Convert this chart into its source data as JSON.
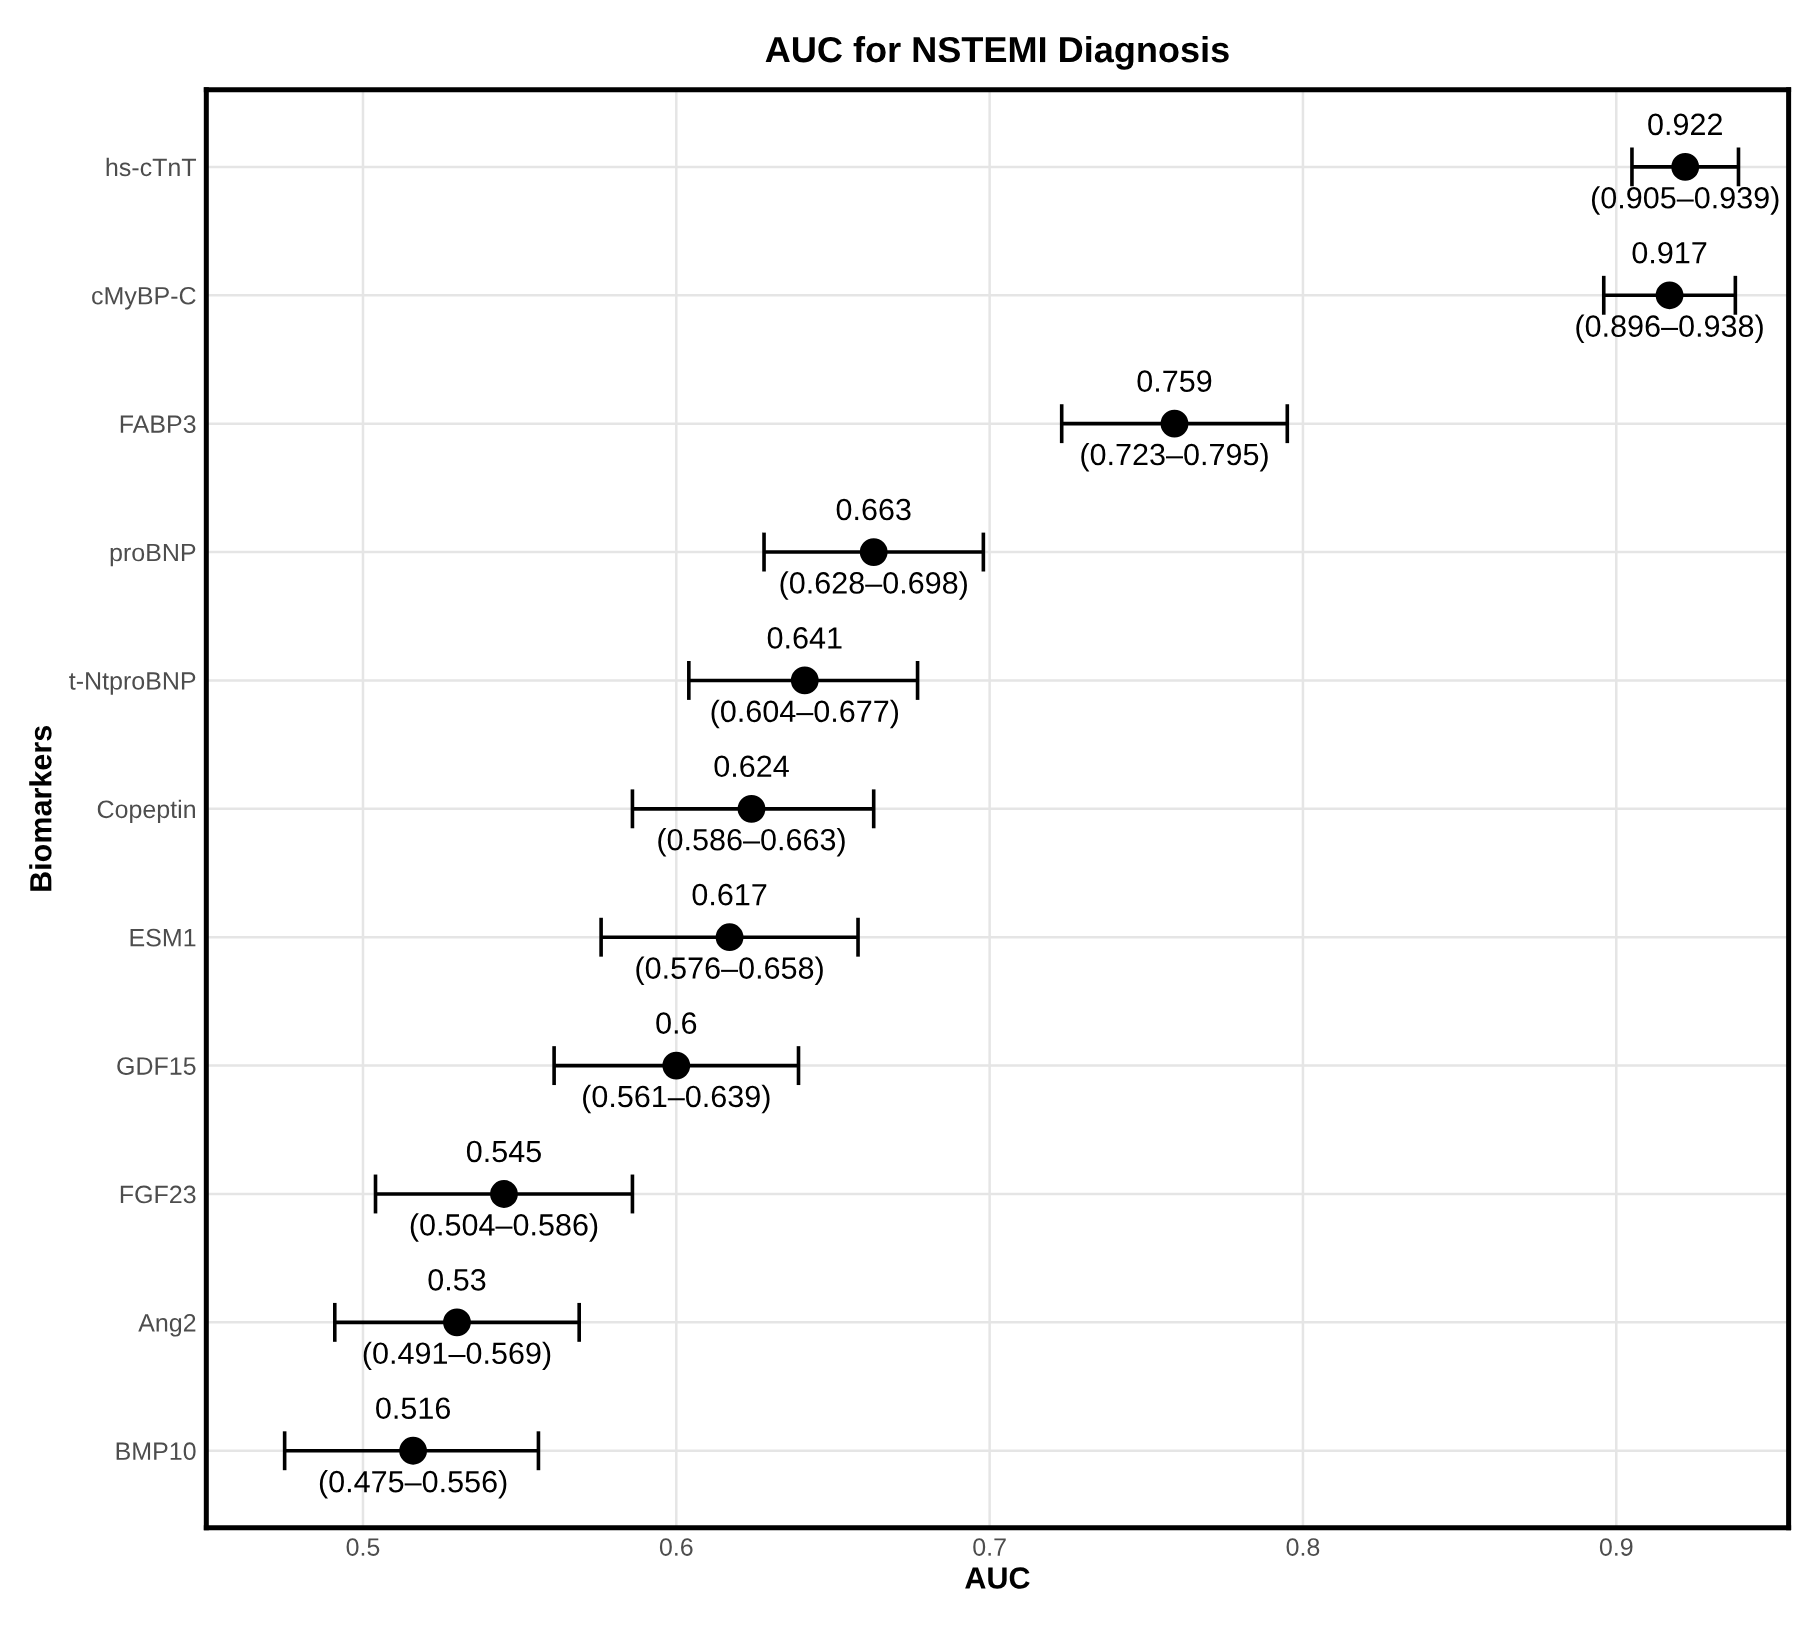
{
  "chart_data": {
    "type": "scatter",
    "orientation": "horizontal",
    "title": "AUC for NSTEMI Diagnosis",
    "xlabel": "AUC",
    "ylabel": "Biomarkers",
    "categories": [
      "hs-cTnT",
      "cMyBP-C",
      "FABP3",
      "proBNP",
      "t-NtproBNP",
      "Copeptin",
      "ESM1",
      "GDF15",
      "FGF23",
      "Ang2",
      "BMP10"
    ],
    "values": [
      0.922,
      0.917,
      0.759,
      0.663,
      0.641,
      0.624,
      0.617,
      0.6,
      0.545,
      0.53,
      0.516
    ],
    "errors": [
      [
        0.905,
        0.939
      ],
      [
        0.896,
        0.938
      ],
      [
        0.723,
        0.795
      ],
      [
        0.628,
        0.698
      ],
      [
        0.604,
        0.677
      ],
      [
        0.586,
        0.663
      ],
      [
        0.576,
        0.658
      ],
      [
        0.561,
        0.639
      ],
      [
        0.504,
        0.586
      ],
      [
        0.491,
        0.569
      ],
      [
        0.475,
        0.556
      ]
    ],
    "value_labels": [
      "0.922",
      "0.917",
      "0.759",
      "0.663",
      "0.641",
      "0.624",
      "0.617",
      "0.6",
      "0.545",
      "0.53",
      "0.516"
    ],
    "annotations": [
      {
        "text": "(0.905–0.939)",
        "x": 0.922,
        "y": "hs-cTnT"
      },
      {
        "text": "(0.896–0.938)",
        "x": 0.917,
        "y": "cMyBP-C"
      },
      {
        "text": "(0.723–0.795)",
        "x": 0.759,
        "y": "FABP3"
      },
      {
        "text": "(0.628–0.698)",
        "x": 0.663,
        "y": "proBNP"
      },
      {
        "text": "(0.604–0.677)",
        "x": 0.641,
        "y": "t-NtproBNP"
      },
      {
        "text": "(0.586–0.663)",
        "x": 0.624,
        "y": "Copeptin"
      },
      {
        "text": "(0.576–0.658)",
        "x": 0.617,
        "y": "ESM1"
      },
      {
        "text": "(0.561–0.639)",
        "x": 0.6,
        "y": "GDF15"
      },
      {
        "text": "(0.504–0.586)",
        "x": 0.545,
        "y": "FGF23"
      },
      {
        "text": "(0.491–0.569)",
        "x": 0.53,
        "y": "Ang2"
      },
      {
        "text": "(0.475–0.556)",
        "x": 0.516,
        "y": "BMP10"
      }
    ],
    "color": "#000000",
    "marker": "circle",
    "xlim": [
      0.45,
      0.955
    ],
    "xticks": [
      0.5,
      0.6,
      0.7,
      0.8,
      0.9
    ],
    "grid": true
  }
}
